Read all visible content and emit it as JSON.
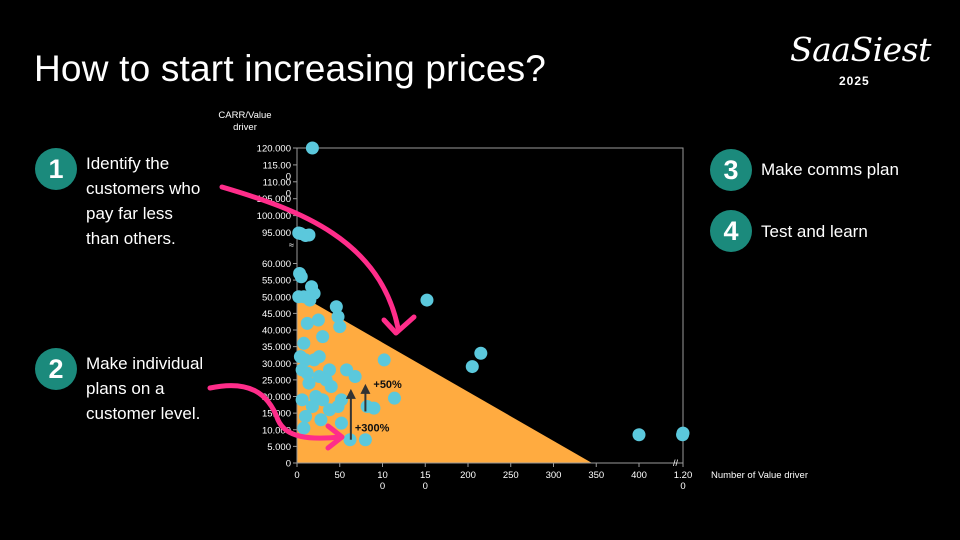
{
  "slide": {
    "title": "How to start increasing prices?",
    "logo": {
      "word": "SaaSiest",
      "year": "2025"
    }
  },
  "steps": [
    {
      "number": "1",
      "lines": [
        "Identify the",
        "customers who",
        "pay far less",
        "than others."
      ]
    },
    {
      "number": "2",
      "lines": [
        "Make individual",
        "plans on a",
        "customer level."
      ]
    },
    {
      "number": "3",
      "lines": [
        "Make comms plan"
      ]
    },
    {
      "number": "4",
      "lines": [
        "Test and learn"
      ]
    }
  ],
  "colors": {
    "badge": "#1b8a7c",
    "points": "#5bc8dc",
    "area": "#ffab40",
    "annotation": "#ff2d8a",
    "arrow": "#333333"
  },
  "chart_data": {
    "type": "scatter",
    "ylabel_lines": [
      "CARR/Value",
      "driver"
    ],
    "xlabel": "Number of Value driver",
    "y_ticks_lower": [
      {
        "value": 0,
        "label": "0"
      },
      {
        "value": 5000,
        "label": "5.000"
      },
      {
        "value": 10000,
        "label": "10.000"
      },
      {
        "value": 15000,
        "label": "15.000"
      },
      {
        "value": 20000,
        "label": "20.000"
      },
      {
        "value": 25000,
        "label": "25.000"
      },
      {
        "value": 30000,
        "label": "30.000"
      },
      {
        "value": 35000,
        "label": "35.000"
      },
      {
        "value": 40000,
        "label": "40.000"
      },
      {
        "value": 45000,
        "label": "45.000"
      },
      {
        "value": 50000,
        "label": "50.000"
      },
      {
        "value": 55000,
        "label": "55.000"
      },
      {
        "value": 60000,
        "label": "60.000"
      }
    ],
    "y_ticks_upper": [
      {
        "value": 95000,
        "label": [
          "95.000"
        ]
      },
      {
        "value": 100000,
        "label": [
          "100.000"
        ]
      },
      {
        "value": 105000,
        "label": [
          "105.000"
        ]
      },
      {
        "value": 110000,
        "label": [
          "110.00",
          "0"
        ]
      },
      {
        "value": 115000,
        "label": [
          "115.00",
          "0"
        ]
      },
      {
        "value": 120000,
        "label": [
          "120.000"
        ]
      }
    ],
    "x_ticks": [
      {
        "value": 0,
        "label": [
          "0"
        ]
      },
      {
        "value": 50,
        "label": [
          "50"
        ]
      },
      {
        "value": 100,
        "label": [
          "10",
          "0"
        ]
      },
      {
        "value": 150,
        "label": [
          "15",
          "0"
        ]
      },
      {
        "value": 200,
        "label": [
          "200"
        ]
      },
      {
        "value": 250,
        "label": [
          "250"
        ]
      },
      {
        "value": 300,
        "label": [
          "300"
        ]
      },
      {
        "value": 350,
        "label": [
          "350"
        ]
      },
      {
        "value": 400,
        "label": [
          "400"
        ]
      },
      {
        "value": 1200,
        "label": [
          "1.20",
          "0"
        ]
      }
    ],
    "area": {
      "label": "",
      "polygon": [
        [
          0,
          0
        ],
        [
          0,
          51000
        ],
        [
          345,
          0
        ]
      ]
    },
    "points": [
      [
        18,
        120000
      ],
      [
        2,
        94000
      ],
      [
        4,
        93000
      ],
      [
        10,
        89000
      ],
      [
        14,
        90000
      ],
      [
        3,
        57000
      ],
      [
        5,
        56000
      ],
      [
        17,
        53000
      ],
      [
        20,
        51000
      ],
      [
        2,
        50000
      ],
      [
        8,
        50000
      ],
      [
        15,
        49000
      ],
      [
        152,
        49000
      ],
      [
        46,
        47000
      ],
      [
        48,
        44000
      ],
      [
        25,
        43000
      ],
      [
        12,
        42000
      ],
      [
        50,
        41000
      ],
      [
        30,
        38000
      ],
      [
        8,
        36000
      ],
      [
        215,
        33000
      ],
      [
        4,
        32000
      ],
      [
        10,
        31000
      ],
      [
        20,
        31000
      ],
      [
        26,
        32000
      ],
      [
        102,
        31000
      ],
      [
        205,
        29000
      ],
      [
        6,
        28000
      ],
      [
        38,
        28000
      ],
      [
        58,
        28000
      ],
      [
        12,
        27000
      ],
      [
        26,
        26000
      ],
      [
        68,
        26000
      ],
      [
        34,
        25000
      ],
      [
        14,
        24000
      ],
      [
        40,
        23000
      ],
      [
        22,
        20000
      ],
      [
        6,
        19000
      ],
      [
        30,
        19000
      ],
      [
        52,
        19000
      ],
      [
        114,
        19500
      ],
      [
        18,
        17000
      ],
      [
        48,
        17000
      ],
      [
        82,
        17000
      ],
      [
        90,
        16500
      ],
      [
        38,
        16000
      ],
      [
        10,
        14000
      ],
      [
        28,
        13000
      ],
      [
        52,
        12000
      ],
      [
        8,
        10500
      ],
      [
        62,
        7000
      ],
      [
        80,
        7000
      ],
      [
        400,
        8500
      ],
      [
        1192,
        8500
      ],
      [
        1200,
        9000
      ]
    ],
    "annotations": [
      {
        "label": "+50%",
        "x": 80,
        "y_from": 15500,
        "y_to": 23500
      },
      {
        "label": "+300%",
        "x": 63,
        "y_from": 7000,
        "y_to": 22000
      }
    ]
  }
}
